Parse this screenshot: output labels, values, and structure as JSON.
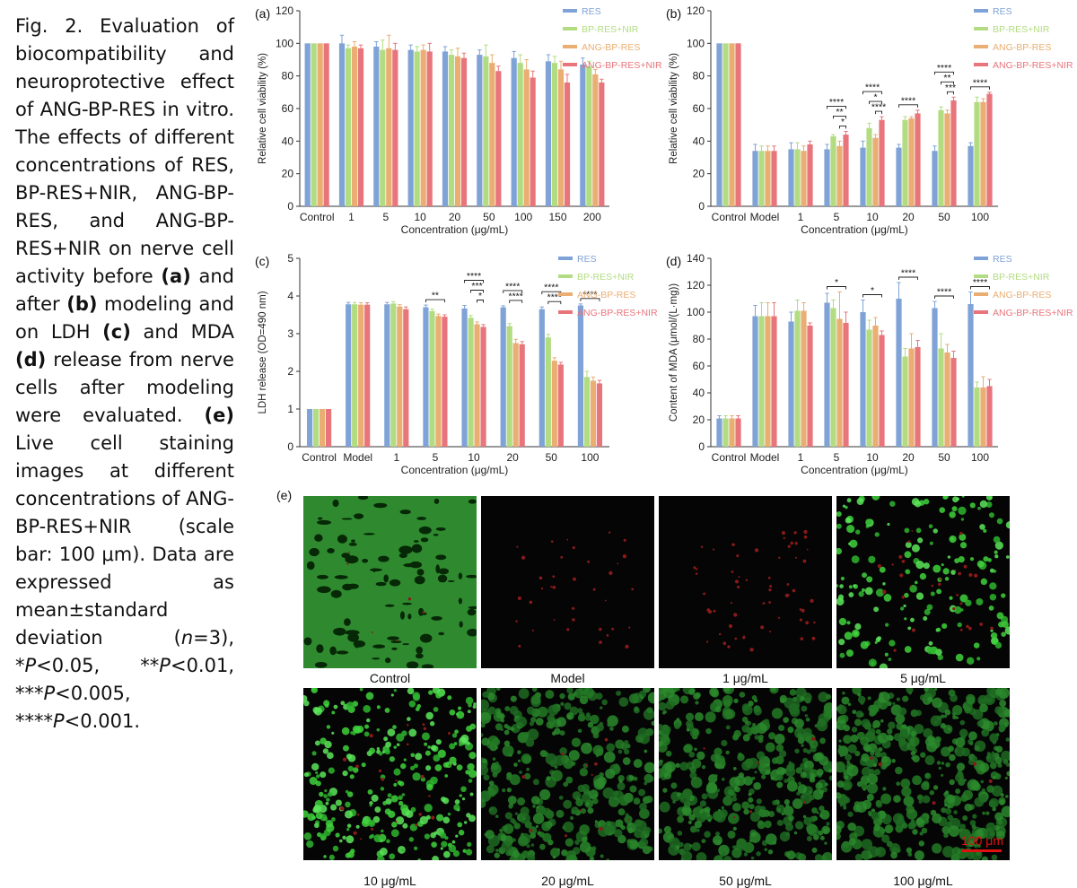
{
  "caption": {
    "lead": "Fig. 2. Evaluation of biocompatibility and neuroprotective effect of ANG-BP-RES in vitro. The effects of different concentrations of RES, BP-RES+NIR, ANG-BP-RES, and ANG-BP-RES+NIR on nerve cell activity before",
    "a": "(a)",
    "t1": "and after",
    "b": "(b)",
    "t2": "modeling and on LDH",
    "c": "(c)",
    "t3": "and MDA",
    "d": "(d)",
    "t4": "release from nerve cells after modeling were evaluated.",
    "e": "(e)",
    "t5": "Live cell staining images at different concentrations of ANG-BP-RES+NIR (scale bar: 100 μm). Data are expressed as mean±standard deviation (",
    "n": "n",
    "t6": "=3), *",
    "p1": "P",
    "t7": "<0.05, **",
    "p2": "P",
    "t8": "<0.01, ***",
    "p3": "P",
    "t9": "<0.005, ****",
    "p4": "P",
    "t10": "<0.001."
  },
  "colors": {
    "RES": "#7fa3d6",
    "BP-RES+NIR": "#b2dc82",
    "ANG-BP-RES": "#eaae72",
    "ANG-BP-RES+NIR": "#e8757b"
  },
  "chart_data": [
    {
      "panel": "(a)",
      "type": "bar",
      "ylabel": "Relative cell viability (%)",
      "xlabel": "Concentration (μg/mL)",
      "ylim": [
        0,
        120
      ],
      "yticks": [
        0,
        20,
        40,
        60,
        80,
        100,
        120
      ],
      "legend": "top-right",
      "categories": [
        "Control",
        "1",
        "5",
        "10",
        "20",
        "50",
        "100",
        "150",
        "200"
      ],
      "series": [
        {
          "name": "RES",
          "values": [
            100,
            100,
            98,
            96,
            95,
            93,
            91,
            89,
            87
          ],
          "errors": [
            0,
            5,
            3,
            3,
            3,
            3,
            4,
            4,
            4
          ]
        },
        {
          "name": "BP-RES+NIR",
          "values": [
            100,
            97,
            96,
            95,
            93,
            92,
            88,
            88,
            86
          ],
          "errors": [
            0,
            2,
            6,
            3,
            3,
            7,
            5,
            4,
            3
          ]
        },
        {
          "name": "ANG-BP-RES",
          "values": [
            100,
            98,
            97,
            96,
            92,
            88,
            84,
            84,
            81
          ],
          "errors": [
            0,
            3,
            8,
            3,
            5,
            5,
            6,
            5,
            3
          ]
        },
        {
          "name": "ANG-BP-RES+NIR",
          "values": [
            100,
            97,
            96,
            95,
            91,
            83,
            79,
            76,
            76
          ],
          "errors": [
            0,
            2,
            4,
            5,
            3,
            3,
            4,
            5,
            2
          ]
        }
      ],
      "annotations": []
    },
    {
      "panel": "(b)",
      "type": "bar",
      "ylabel": "Relative cell viability (%)",
      "xlabel": "Concentration (μg/mL)",
      "ylim": [
        0,
        120
      ],
      "yticks": [
        0,
        20,
        40,
        60,
        80,
        100,
        120
      ],
      "legend": "top-right",
      "categories": [
        "Control",
        "Model",
        "1",
        "5",
        "10",
        "20",
        "50",
        "100"
      ],
      "series": [
        {
          "name": "RES",
          "values": [
            100,
            34,
            35,
            35,
            36,
            36,
            34,
            37
          ],
          "errors": [
            0,
            4,
            4,
            3,
            4,
            2,
            3,
            2
          ]
        },
        {
          "name": "BP-RES+NIR",
          "values": [
            100,
            34,
            35,
            43,
            48,
            53,
            59,
            64
          ],
          "errors": [
            0,
            3,
            4,
            1,
            3,
            2,
            2,
            3
          ]
        },
        {
          "name": "ANG-BP-RES",
          "values": [
            100,
            34,
            34,
            37,
            42,
            54,
            57,
            64
          ],
          "errors": [
            0,
            3,
            3,
            3,
            2,
            1,
            2,
            2
          ]
        },
        {
          "name": "ANG-BP-RES+NIR",
          "values": [
            100,
            34,
            38,
            44,
            53,
            57,
            65,
            69
          ],
          "errors": [
            0,
            3,
            2,
            2,
            2,
            2,
            2,
            1
          ]
        }
      ],
      "annotations": [
        {
          "cat": 3,
          "from": 0,
          "to": 3,
          "label": "****"
        },
        {
          "cat": 3,
          "from": 1,
          "to": 3,
          "label": "**"
        },
        {
          "cat": 3,
          "from": 2,
          "to": 3,
          "label": "*"
        },
        {
          "cat": 4,
          "from": 0,
          "to": 3,
          "label": "****"
        },
        {
          "cat": 4,
          "from": 1,
          "to": 3,
          "label": "*"
        },
        {
          "cat": 4,
          "from": 2,
          "to": 3,
          "label": "****"
        },
        {
          "cat": 5,
          "from": 0,
          "to": 3,
          "label": "****"
        },
        {
          "cat": 6,
          "from": 0,
          "to": 3,
          "label": "****"
        },
        {
          "cat": 6,
          "from": 1,
          "to": 3,
          "label": "**"
        },
        {
          "cat": 6,
          "from": 2,
          "to": 3,
          "label": "***"
        },
        {
          "cat": 7,
          "from": 0,
          "to": 3,
          "label": "****"
        }
      ]
    },
    {
      "panel": "(c)",
      "type": "bar",
      "ylabel": "LDH release (OD=490 nm)",
      "xlabel": "Concentration (μg/mL)",
      "ylim": [
        0,
        5
      ],
      "yticks": [
        0,
        1,
        2,
        3,
        4,
        5
      ],
      "legend": "top-right",
      "categories": [
        "Control",
        "Model",
        "1",
        "5",
        "10",
        "20",
        "50",
        "100"
      ],
      "series": [
        {
          "name": "RES",
          "values": [
            1,
            3.78,
            3.78,
            3.7,
            3.67,
            3.7,
            3.65,
            3.75
          ],
          "errors": [
            0,
            0.05,
            0.05,
            0.06,
            0.08,
            0.04,
            0.06,
            0.04
          ]
        },
        {
          "name": "BP-RES+NIR",
          "values": [
            1,
            3.78,
            3.8,
            3.6,
            3.42,
            3.2,
            2.9,
            1.85
          ],
          "errors": [
            0,
            0.05,
            0.05,
            0.05,
            0.06,
            0.07,
            0.08,
            0.15
          ]
        },
        {
          "name": "ANG-BP-RES",
          "values": [
            1,
            3.77,
            3.72,
            3.47,
            3.25,
            2.75,
            2.28,
            1.75
          ],
          "errors": [
            0,
            0.05,
            0.05,
            0.05,
            0.06,
            0.1,
            0.08,
            0.1
          ]
        },
        {
          "name": "ANG-BP-RES+NIR",
          "values": [
            1,
            3.77,
            3.65,
            3.45,
            3.18,
            2.72,
            2.18,
            1.68
          ],
          "errors": [
            0,
            0.05,
            0.06,
            0.05,
            0.06,
            0.07,
            0.06,
            0.08
          ]
        }
      ],
      "annotations": [
        {
          "cat": 3,
          "from": 0,
          "to": 3,
          "label": "**"
        },
        {
          "cat": 4,
          "from": 0,
          "to": 3,
          "label": "****"
        },
        {
          "cat": 4,
          "from": 1,
          "to": 3,
          "label": "***"
        },
        {
          "cat": 4,
          "from": 2,
          "to": 3,
          "label": "*"
        },
        {
          "cat": 5,
          "from": 0,
          "to": 3,
          "label": "****"
        },
        {
          "cat": 5,
          "from": 1,
          "to": 3,
          "label": "****"
        },
        {
          "cat": 6,
          "from": 0,
          "to": 3,
          "label": "****"
        },
        {
          "cat": 6,
          "from": 1,
          "to": 3,
          "label": "****"
        },
        {
          "cat": 7,
          "from": 0,
          "to": 3,
          "label": "****"
        }
      ]
    },
    {
      "panel": "(d)",
      "type": "bar",
      "ylabel": "Content of MDA (μmol/(L·mg))",
      "xlabel": "Concentration (μg/mL)",
      "ylim": [
        0,
        140
      ],
      "yticks": [
        0,
        20,
        40,
        60,
        80,
        100,
        120,
        140
      ],
      "legend": "top-right",
      "categories": [
        "Control",
        "Model",
        "1",
        "5",
        "10",
        "20",
        "50",
        "100"
      ],
      "series": [
        {
          "name": "RES",
          "values": [
            21,
            97,
            93,
            107,
            100,
            110,
            103,
            106
          ],
          "errors": [
            2,
            8,
            7,
            7,
            9,
            12,
            5,
            9
          ]
        },
        {
          "name": "BP-RES+NIR",
          "values": [
            21,
            97,
            101,
            103,
            87,
            67,
            73,
            44
          ],
          "errors": [
            2,
            10,
            8,
            6,
            7,
            6,
            11,
            4
          ]
        },
        {
          "name": "ANG-BP-RES",
          "values": [
            21,
            97,
            101,
            95,
            90,
            73,
            70,
            44
          ],
          "errors": [
            2,
            10,
            6,
            20,
            6,
            11,
            6,
            8
          ]
        },
        {
          "name": "ANG-BP-RES+NIR",
          "values": [
            21,
            97,
            90,
            92,
            83,
            74,
            66,
            45
          ],
          "errors": [
            2,
            10,
            2,
            8,
            3,
            5,
            5,
            5
          ]
        }
      ],
      "annotations": [
        {
          "cat": 3,
          "from": 0,
          "to": 3,
          "label": "*"
        },
        {
          "cat": 4,
          "from": 0,
          "to": 3,
          "label": "*"
        },
        {
          "cat": 5,
          "from": 0,
          "to": 3,
          "label": "****"
        },
        {
          "cat": 6,
          "from": 0,
          "to": 3,
          "label": "****"
        },
        {
          "cat": 7,
          "from": 0,
          "to": 3,
          "label": "****"
        }
      ]
    }
  ],
  "micrographs": {
    "panel_label": "(e)",
    "tiles": [
      {
        "label": "Control",
        "green": 0.95,
        "red": 0.02
      },
      {
        "label": "Model",
        "green": 0.0,
        "red": 0.12
      },
      {
        "label": "1 μg/mL",
        "green": 0.0,
        "red": 0.2
      },
      {
        "label": "5 μg/mL",
        "green": 0.35,
        "red": 0.1
      },
      {
        "label": "10 μg/mL",
        "green": 0.55,
        "red": 0.08
      },
      {
        "label": "20 μg/mL",
        "green": 0.7,
        "red": 0.04
      },
      {
        "label": "50 μg/mL",
        "green": 0.8,
        "red": 0.02
      },
      {
        "label": "100 μg/mL",
        "green": 0.85,
        "red": 0.02
      }
    ],
    "scale_bar_label": "100 μm"
  }
}
